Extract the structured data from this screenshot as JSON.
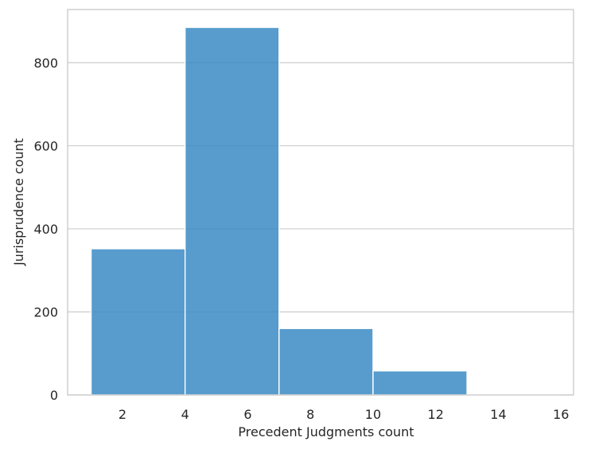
{
  "chart_data": {
    "type": "bar",
    "subtype": "histogram",
    "title": "",
    "xlabel": "Precedent Judgments count",
    "ylabel": "Jurisprudence count",
    "bins": [
      {
        "x0": 1,
        "x1": 4,
        "value": 352
      },
      {
        "x0": 4,
        "x1": 7,
        "value": 885
      },
      {
        "x0": 7,
        "x1": 10,
        "value": 160
      },
      {
        "x0": 10,
        "x1": 13,
        "value": 58
      },
      {
        "x0": 13,
        "x1": 16,
        "value": 2
      }
    ],
    "xlim": [
      0.25,
      16.4
    ],
    "ylim": [
      0,
      928
    ],
    "xticks": [
      2,
      4,
      6,
      8,
      10,
      12,
      14,
      16
    ],
    "yticks": [
      0,
      200,
      400,
      600,
      800
    ],
    "grid": "y",
    "bar_color": "#3a8bc4",
    "grid_color": "#cccccc",
    "text_color": "#262626"
  }
}
